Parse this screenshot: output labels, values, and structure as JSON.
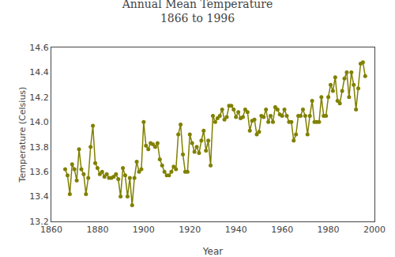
{
  "chart_data": {
    "type": "line",
    "title": "Annual Mean Temperature\n1866 to 1996",
    "xlabel": "Year",
    "ylabel": "Temperature (Celsius)",
    "color": "#808000",
    "marker": "circle",
    "line_style": "solid",
    "grid": false,
    "xlim": [
      1860,
      2000
    ],
    "ylim": [
      13.2,
      14.6
    ],
    "xticks": [
      1860,
      1880,
      1900,
      1920,
      1940,
      1960,
      1980,
      2000
    ],
    "yticks": [
      13.2,
      13.4,
      13.6,
      13.8,
      {
        "value": 14.0,
        "label": "14.0"
      },
      14.2,
      14.4,
      14.6
    ],
    "x": [
      1866,
      1867,
      1868,
      1869,
      1870,
      1871,
      1872,
      1873,
      1874,
      1875,
      1876,
      1877,
      1878,
      1879,
      1880,
      1881,
      1882,
      1883,
      1884,
      1885,
      1886,
      1887,
      1888,
      1889,
      1890,
      1891,
      1892,
      1893,
      1894,
      1895,
      1896,
      1897,
      1898,
      1899,
      1900,
      1901,
      1902,
      1903,
      1904,
      1905,
      1906,
      1907,
      1908,
      1909,
      1910,
      1911,
      1912,
      1913,
      1914,
      1915,
      1916,
      1917,
      1918,
      1919,
      1920,
      1921,
      1922,
      1923,
      1924,
      1925,
      1926,
      1927,
      1928,
      1929,
      1930,
      1931,
      1932,
      1933,
      1934,
      1935,
      1936,
      1937,
      1938,
      1939,
      1940,
      1941,
      1942,
      1943,
      1944,
      1945,
      1946,
      1947,
      1948,
      1949,
      1950,
      1951,
      1952,
      1953,
      1954,
      1955,
      1956,
      1957,
      1958,
      1959,
      1960,
      1961,
      1962,
      1963,
      1964,
      1965,
      1966,
      1967,
      1968,
      1969,
      1970,
      1971,
      1972,
      1973,
      1974,
      1975,
      1976,
      1977,
      1978,
      1979,
      1980,
      1981,
      1982,
      1983,
      1984,
      1985,
      1986,
      1987,
      1988,
      1989,
      1990,
      1991,
      1992,
      1993,
      1994,
      1995,
      1996
    ],
    "values": [
      13.62,
      13.57,
      13.42,
      13.66,
      13.62,
      13.53,
      13.78,
      13.62,
      13.58,
      13.42,
      13.55,
      13.8,
      13.97,
      13.67,
      13.63,
      13.58,
      13.6,
      13.56,
      13.58,
      13.55,
      13.55,
      13.56,
      13.58,
      13.54,
      13.4,
      13.63,
      13.57,
      13.4,
      13.55,
      13.33,
      13.55,
      13.68,
      13.6,
      13.62,
      14.0,
      13.81,
      13.78,
      13.83,
      13.82,
      13.8,
      13.83,
      13.7,
      13.65,
      13.6,
      13.57,
      13.57,
      13.6,
      13.64,
      13.62,
      13.9,
      13.98,
      13.74,
      13.6,
      13.6,
      13.9,
      13.83,
      13.76,
      13.8,
      13.75,
      13.85,
      13.93,
      13.77,
      13.85,
      13.65,
      14.05,
      14.0,
      14.03,
      14.05,
      14.1,
      14.02,
      14.04,
      14.13,
      14.13,
      14.1,
      14.04,
      14.08,
      14.03,
      14.04,
      14.1,
      14.08,
      13.93,
      14.01,
      14.02,
      13.9,
      13.92,
      14.05,
      14.04,
      14.1,
      14.0,
      14.05,
      14.0,
      14.12,
      14.1,
      14.06,
      14.05,
      14.1,
      14.05,
      14.0,
      14.0,
      13.85,
      13.9,
      14.05,
      14.05,
      14.1,
      14.05,
      13.9,
      14.05,
      14.17,
      14.0,
      14.0,
      14.0,
      14.2,
      14.05,
      14.05,
      14.2,
      14.3,
      14.25,
      14.36,
      14.17,
      14.15,
      14.25,
      14.35,
      14.4,
      14.2,
      14.4,
      14.3,
      14.1,
      14.27,
      14.47,
      14.48,
      14.37
    ]
  }
}
